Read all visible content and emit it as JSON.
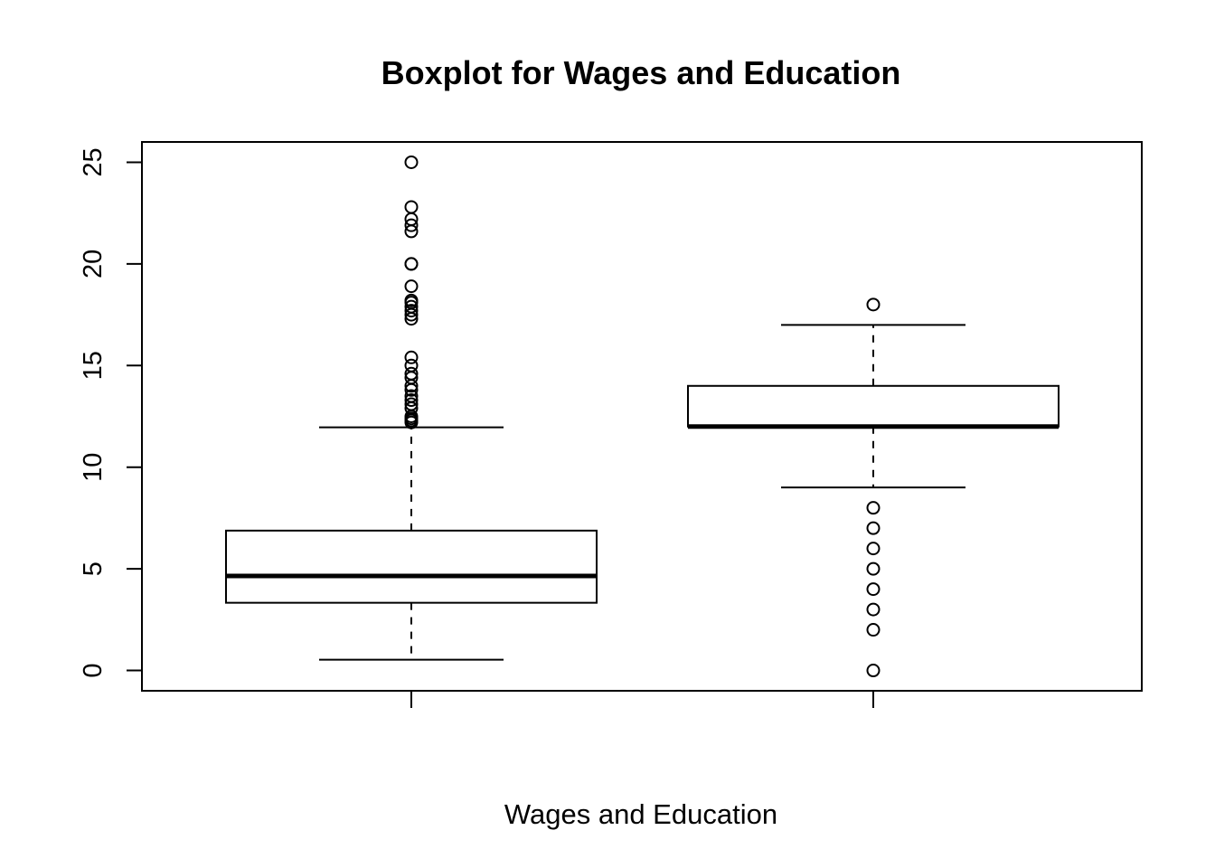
{
  "chart_data": {
    "type": "boxplot",
    "title": "Boxplot for Wages and Education",
    "xlabel": "Wages and Education",
    "ylabel": "",
    "ylim": [
      -1,
      26
    ],
    "yticks": [
      0,
      5,
      10,
      15,
      20,
      25
    ],
    "ytick_labels": [
      "0",
      "5",
      "10",
      "15",
      "20",
      "25"
    ],
    "grid": false,
    "legend": "none",
    "boxes": [
      {
        "whisker_low": 0.53,
        "q1": 3.33,
        "median": 4.65,
        "q3": 6.88,
        "whisker_high": 11.96,
        "outliers": [
          12.2,
          12.3,
          12.4,
          12.5,
          12.9,
          13.1,
          13.3,
          13.5,
          13.8,
          14.0,
          14.4,
          14.6,
          15.0,
          15.4,
          17.3,
          17.5,
          17.7,
          17.9,
          18.1,
          18.2,
          18.9,
          20.0,
          20.0,
          21.6,
          21.9,
          22.2,
          22.8,
          25.0
        ]
      },
      {
        "whisker_low": 9,
        "q1": 12,
        "median": 12,
        "q3": 14,
        "whisker_high": 17,
        "outliers": [
          0,
          2,
          3,
          4,
          5,
          6,
          7,
          8,
          18
        ]
      }
    ],
    "colors": {
      "line": "#000000",
      "background": "#ffffff"
    }
  }
}
